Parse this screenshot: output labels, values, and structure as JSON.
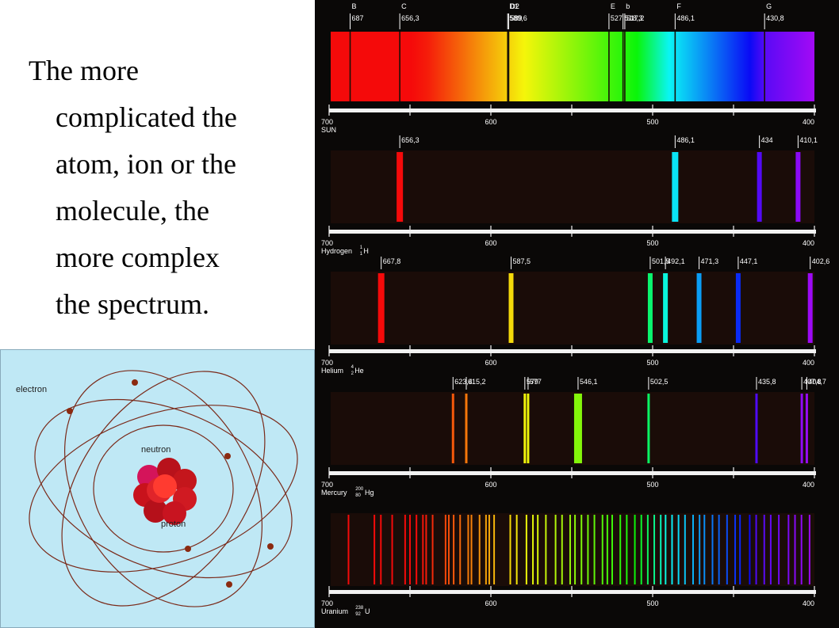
{
  "slide": {
    "text_lines": [
      "The more",
      "complicated the",
      "atom, ion or the",
      "molecule, the",
      "more complex",
      "the spectrum."
    ]
  },
  "atom_diagram": {
    "labels": {
      "electron": "electron",
      "neutron": "neutron",
      "proton": "proton"
    },
    "colors": {
      "background": "#bfe8f5",
      "orbit": "#7a2a1a",
      "nucleus": "#cc1a22",
      "electron": "#8b2a10"
    }
  },
  "chart_data": {
    "type": "spectrum",
    "axis": {
      "ticks": [
        "700",
        "600",
        "500",
        "400"
      ],
      "units": "nm",
      "range": [
        700,
        400
      ]
    },
    "spectra": [
      {
        "name": "SUN",
        "kind": "absorption",
        "fraunhofer_letters": [
          {
            "letter": "B",
            "wl": 687
          },
          {
            "letter": "C",
            "wl": 656.3
          },
          {
            "letter": "D1",
            "wl": 589.6
          },
          {
            "letter": "D2",
            "wl": 589
          },
          {
            "letter": "E",
            "wl": 527
          },
          {
            "letter": "b",
            "wl": 517.5
          },
          {
            "letter": "F",
            "wl": 486.1
          },
          {
            "letter": "G",
            "wl": 430.8
          }
        ],
        "line_labels": [
          "687",
          "656,3",
          "589,6",
          "589",
          "527",
          "518,3",
          "517,2",
          "486,1",
          "430,8"
        ],
        "lines": [
          687,
          656.3,
          589.6,
          589,
          527,
          518.3,
          517.2,
          486.1,
          430.8
        ]
      },
      {
        "name": "Hydrogen",
        "isotope": {
          "symbol": "H",
          "mass": "1",
          "atomic": "1"
        },
        "kind": "emission",
        "line_labels": [
          "656,3",
          "486,1",
          "434",
          "410,1"
        ],
        "lines": [
          656.3,
          486.1,
          434,
          410.1
        ]
      },
      {
        "name": "Helium",
        "isotope": {
          "symbol": "He",
          "mass": "4",
          "atomic": "2"
        },
        "kind": "emission",
        "line_labels": [
          "667,8",
          "587,5",
          "501,5",
          "492,1",
          "471,3",
          "447,1",
          "402,6"
        ],
        "lines": [
          667.8,
          587.5,
          501.5,
          492.1,
          471.3,
          447.1,
          402.6
        ]
      },
      {
        "name": "Mercury",
        "isotope": {
          "symbol": "Hg",
          "mass": "200",
          "atomic": "80"
        },
        "kind": "emission",
        "line_labels": [
          "623,4",
          "615,2",
          "579",
          "577",
          "546,1",
          "502,5",
          "435,8",
          "407,8",
          "404,7"
        ],
        "lines": [
          623.4,
          615.2,
          579,
          577,
          546.1,
          502.5,
          435.8,
          407.8,
          404.7
        ]
      },
      {
        "name": "Uranium",
        "isotope": {
          "symbol": "U",
          "mass": "238",
          "atomic": "92"
        },
        "kind": "emission",
        "line_labels": [],
        "lines": [
          688,
          672,
          668,
          661,
          653,
          650,
          646,
          642,
          640,
          636,
          628,
          626,
          623,
          619,
          614,
          612,
          607,
          603,
          601,
          598,
          588,
          584,
          578,
          574,
          571,
          566,
          560,
          556,
          551,
          548,
          544,
          540,
          536,
          531,
          528,
          525,
          520,
          516,
          511,
          507,
          503,
          499,
          495,
          492,
          488,
          484,
          480,
          475,
          471,
          468,
          463,
          459,
          454,
          449,
          446,
          440,
          436,
          431,
          427,
          422,
          416,
          412,
          408,
          403
        ]
      }
    ]
  }
}
